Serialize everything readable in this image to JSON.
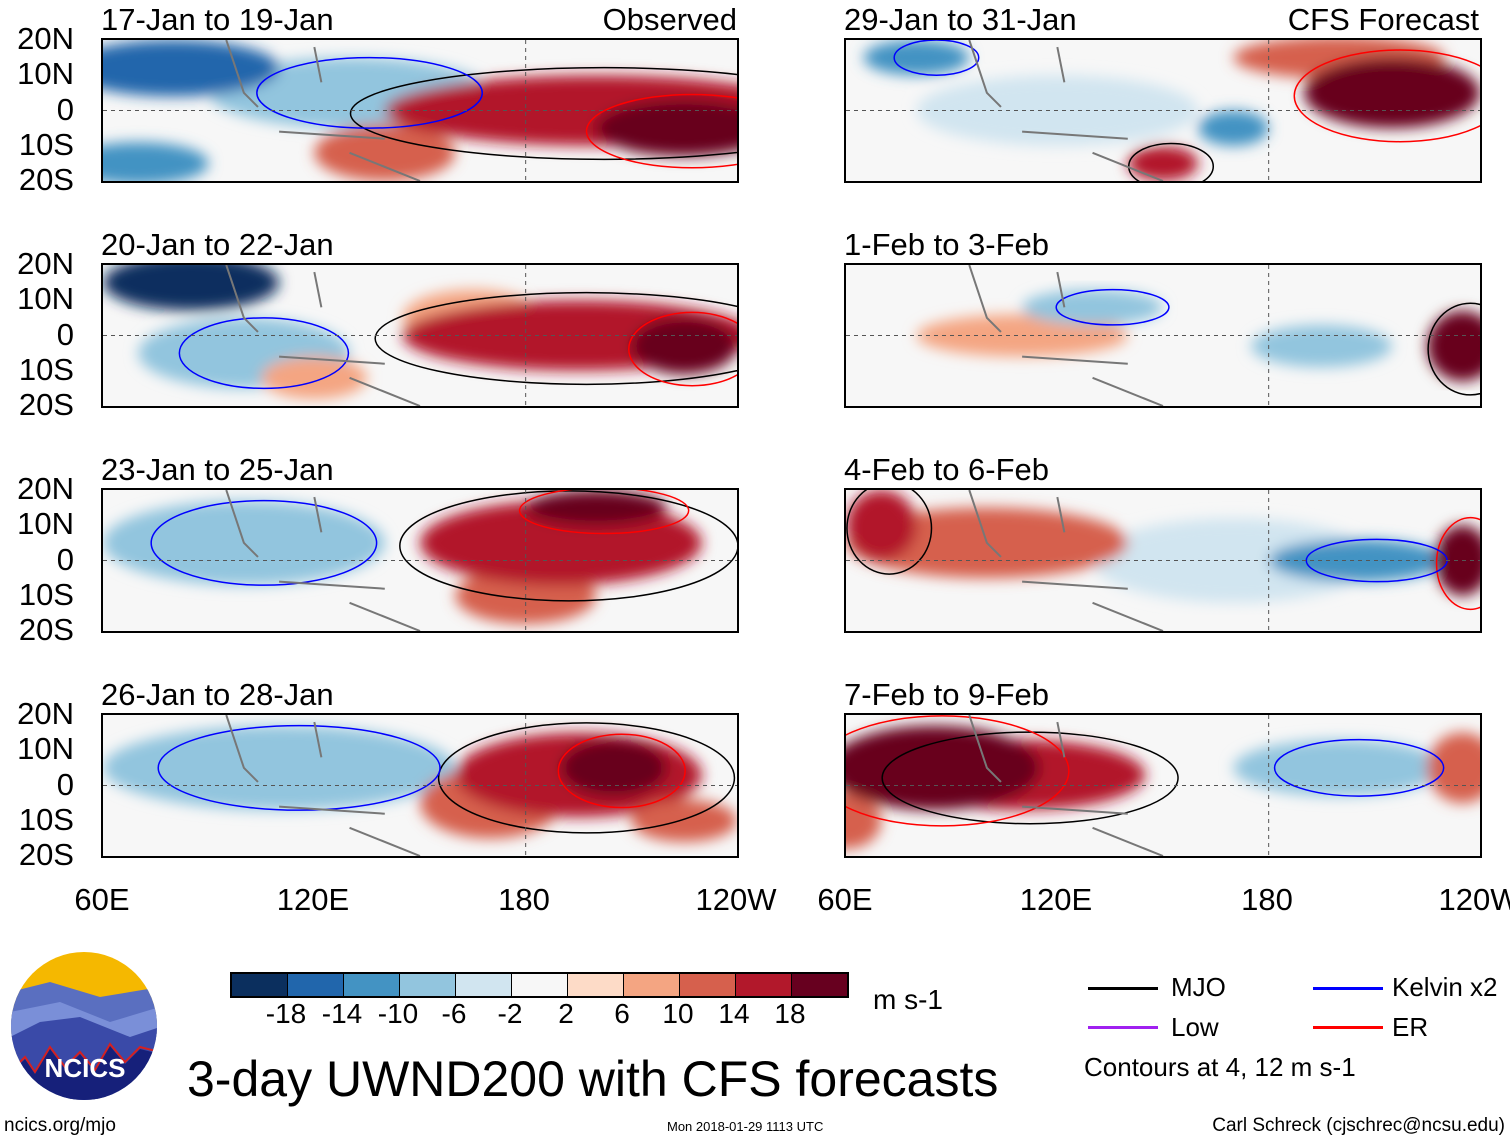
{
  "panel_titles": {
    "left": [
      "17-Jan to 19-Jan",
      "20-Jan to 22-Jan",
      "23-Jan to 25-Jan",
      "26-Jan to 28-Jan"
    ],
    "right": [
      "29-Jan to 31-Jan",
      "1-Feb to 3-Feb",
      "4-Feb to 6-Feb",
      "7-Feb to 9-Feb"
    ],
    "observed_label": "Observed",
    "forecast_label": "CFS Forecast"
  },
  "y_ticks": [
    "20N",
    "10N",
    "0",
    "10S",
    "20S"
  ],
  "x_ticks": [
    "60E",
    "120E",
    "180",
    "120W"
  ],
  "colorbar": {
    "colors": [
      "#0b2f5e",
      "#2166ac",
      "#4393c3",
      "#92c5de",
      "#d1e5f0",
      "#f7f7f7",
      "#fddbc7",
      "#f4a582",
      "#d6604d",
      "#b2182b",
      "#67001f"
    ],
    "labels": [
      "-18",
      "-14",
      "-10",
      "-6",
      "-2",
      "2",
      "6",
      "10",
      "14",
      "18"
    ],
    "units": "m s-1"
  },
  "legend": {
    "items": [
      {
        "label": "MJO",
        "color": "#000000"
      },
      {
        "label": "Kelvin x2",
        "color": "#0000ff"
      },
      {
        "label": "Low",
        "color": "#a020f0"
      },
      {
        "label": "ER",
        "color": "#ff0000"
      }
    ],
    "note": "Contours at 4, 12 m s-1"
  },
  "logo_text": "NCICS",
  "title": "3-day UWND200 with CFS forecasts",
  "footer": {
    "left": "ncics.org/mjo",
    "center": "Mon 2018-01-29 1113 UTC",
    "right": "Carl Schreck (cjschrec@ncsu.edu)"
  },
  "chart_data": {
    "type": "heatmap",
    "title": "3-day UWND200 with CFS forecasts",
    "variable": "200-hPa zonal wind anomaly",
    "units": "m s-1",
    "lon_range": [
      "60E",
      "120W"
    ],
    "lat_range": [
      "20S",
      "20N"
    ],
    "contour_levels": [
      4,
      12
    ],
    "panels": [
      "17-Jan to 19-Jan",
      "20-Jan to 22-Jan",
      "23-Jan to 25-Jan",
      "26-Jan to 28-Jan",
      "29-Jan to 31-Jan",
      "1-Feb to 3-Feb",
      "4-Feb to 6-Feb",
      "7-Feb to 9-Feb"
    ]
  }
}
